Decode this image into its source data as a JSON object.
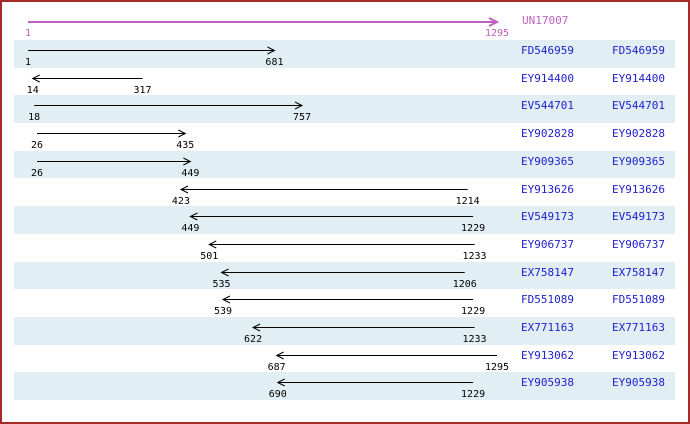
{
  "colors": {
    "border": "#A52A2A",
    "stripe": "#E1EFF5",
    "reference_arrow": "#C060C0",
    "accession_text": "#2020CC",
    "alignment_arrow": "#000000"
  },
  "reference": {
    "label": "UN17007",
    "start": 1,
    "end": 1295,
    "start_label": "1",
    "end_label": "1295",
    "strand": "+"
  },
  "rows": [
    {
      "accession": "FD546959",
      "start": 1,
      "end": 681,
      "strand": "+"
    },
    {
      "accession": "EY914400",
      "start": 14,
      "end": 317,
      "strand": "-"
    },
    {
      "accession": "EV544701",
      "start": 18,
      "end": 757,
      "strand": "+"
    },
    {
      "accession": "EY902828",
      "start": 26,
      "end": 435,
      "strand": "+"
    },
    {
      "accession": "EY909365",
      "start": 26,
      "end": 449,
      "strand": "+"
    },
    {
      "accession": "EY913626",
      "start": 423,
      "end": 1214,
      "strand": "-"
    },
    {
      "accession": "EV549173",
      "start": 449,
      "end": 1229,
      "strand": "-"
    },
    {
      "accession": "EY906737",
      "start": 501,
      "end": 1233,
      "strand": "-"
    },
    {
      "accession": "EX758147",
      "start": 535,
      "end": 1206,
      "strand": "-"
    },
    {
      "accession": "FD551089",
      "start": 539,
      "end": 1229,
      "strand": "-"
    },
    {
      "accession": "EX771163",
      "start": 622,
      "end": 1233,
      "strand": "-"
    },
    {
      "accession": "EY913062",
      "start": 687,
      "end": 1295,
      "strand": "-"
    },
    {
      "accession": "EY905938",
      "start": 690,
      "end": 1229,
      "strand": "-"
    }
  ],
  "chart_data": {
    "type": "bar",
    "subtype": "horizontal-range-alignment",
    "title": "",
    "xlabel": "",
    "ylabel": "",
    "xlim": [
      1,
      1295
    ],
    "grid": false,
    "legend": false,
    "reference": {
      "name": "UN17007",
      "start": 1,
      "end": 1295,
      "strand": "+"
    },
    "categories": [
      "FD546959",
      "EY914400",
      "EV544701",
      "EY902828",
      "EY909365",
      "EY913626",
      "EV549173",
      "EY906737",
      "EX758147",
      "FD551089",
      "EX771163",
      "EY913062",
      "EY905938"
    ],
    "series": [
      {
        "name": "start",
        "values": [
          1,
          14,
          18,
          26,
          26,
          423,
          449,
          501,
          535,
          539,
          622,
          687,
          690
        ]
      },
      {
        "name": "end",
        "values": [
          681,
          317,
          757,
          435,
          449,
          1214,
          1229,
          1233,
          1206,
          1229,
          1233,
          1295,
          1229
        ]
      },
      {
        "name": "strand",
        "values": [
          "+",
          "-",
          "+",
          "+",
          "+",
          "-",
          "-",
          "-",
          "-",
          "-",
          "-",
          "-",
          "-"
        ]
      }
    ]
  }
}
